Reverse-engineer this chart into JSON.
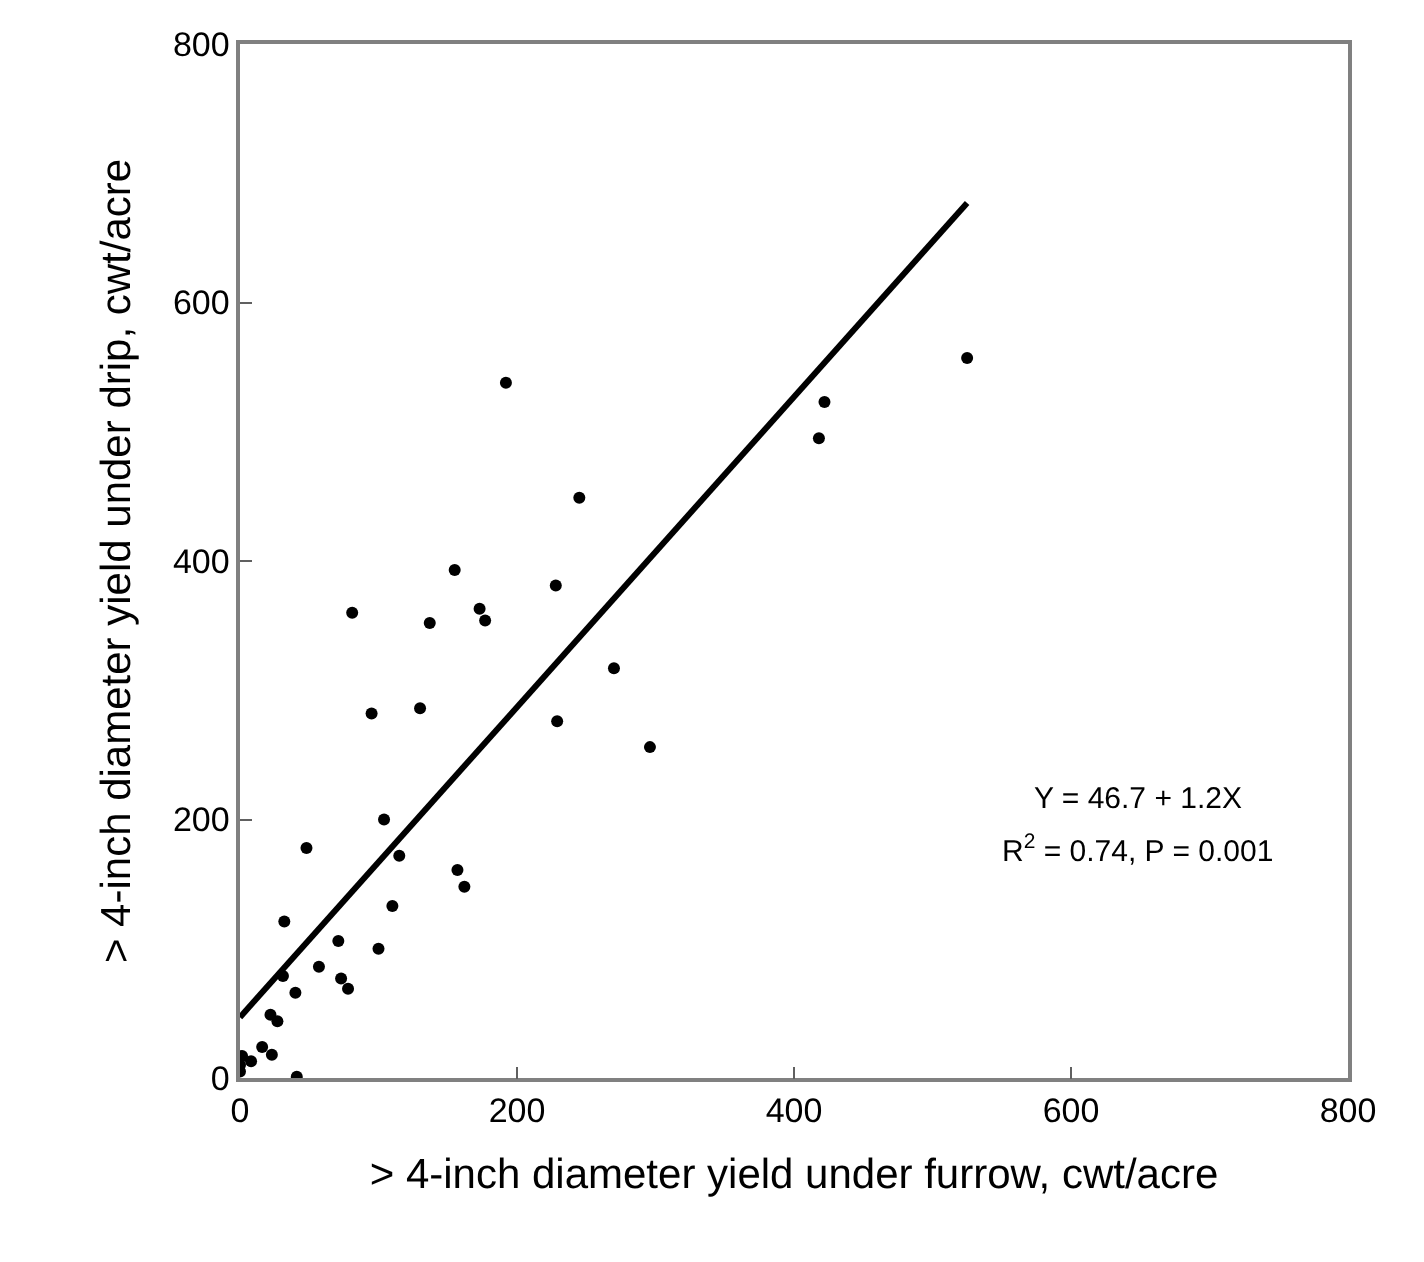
{
  "chart_data": {
    "type": "scatter",
    "xlabel": "> 4-inch diameter yield under furrow, cwt/acre",
    "ylabel": "> 4-inch diameter yield under drip, cwt/acre",
    "xlim": [
      0,
      800
    ],
    "xticks": [
      0,
      200,
      400,
      600,
      800
    ],
    "ylim": [
      0,
      800
    ],
    "yticks": [
      0,
      200,
      400,
      600,
      800
    ],
    "marker": "circle",
    "annotations": [
      "Y = 46.7 + 1.2X",
      "R$^{2}$ = 0.74, P = 0.001"
    ],
    "series": [
      {
        "color": "#000000",
        "x": [
          104,
          48,
          115,
          157,
          162,
          110,
          32,
          71,
          100,
          57,
          31,
          73,
          78,
          40,
          22,
          27,
          16,
          23,
          8,
          1.5,
          0,
          0,
          41,
          192,
          245,
          155,
          228,
          81,
          173,
          177,
          137,
          270,
          95,
          130,
          229,
          296,
          525,
          422,
          418
        ],
        "values": [
          200,
          178,
          172,
          161,
          148,
          133,
          121,
          106,
          100,
          86,
          79,
          77,
          69,
          66,
          49,
          44,
          24,
          18,
          13,
          17,
          10,
          5,
          1,
          538,
          449,
          393,
          381,
          360,
          363,
          354,
          352,
          317,
          282,
          286,
          276,
          256,
          557,
          523,
          495
        ]
      },
      {
        "type": "line",
        "color": "#000000",
        "marker": "none",
        "x": [
          0,
          525
        ],
        "values": [
          47,
          677
        ]
      }
    ]
  }
}
